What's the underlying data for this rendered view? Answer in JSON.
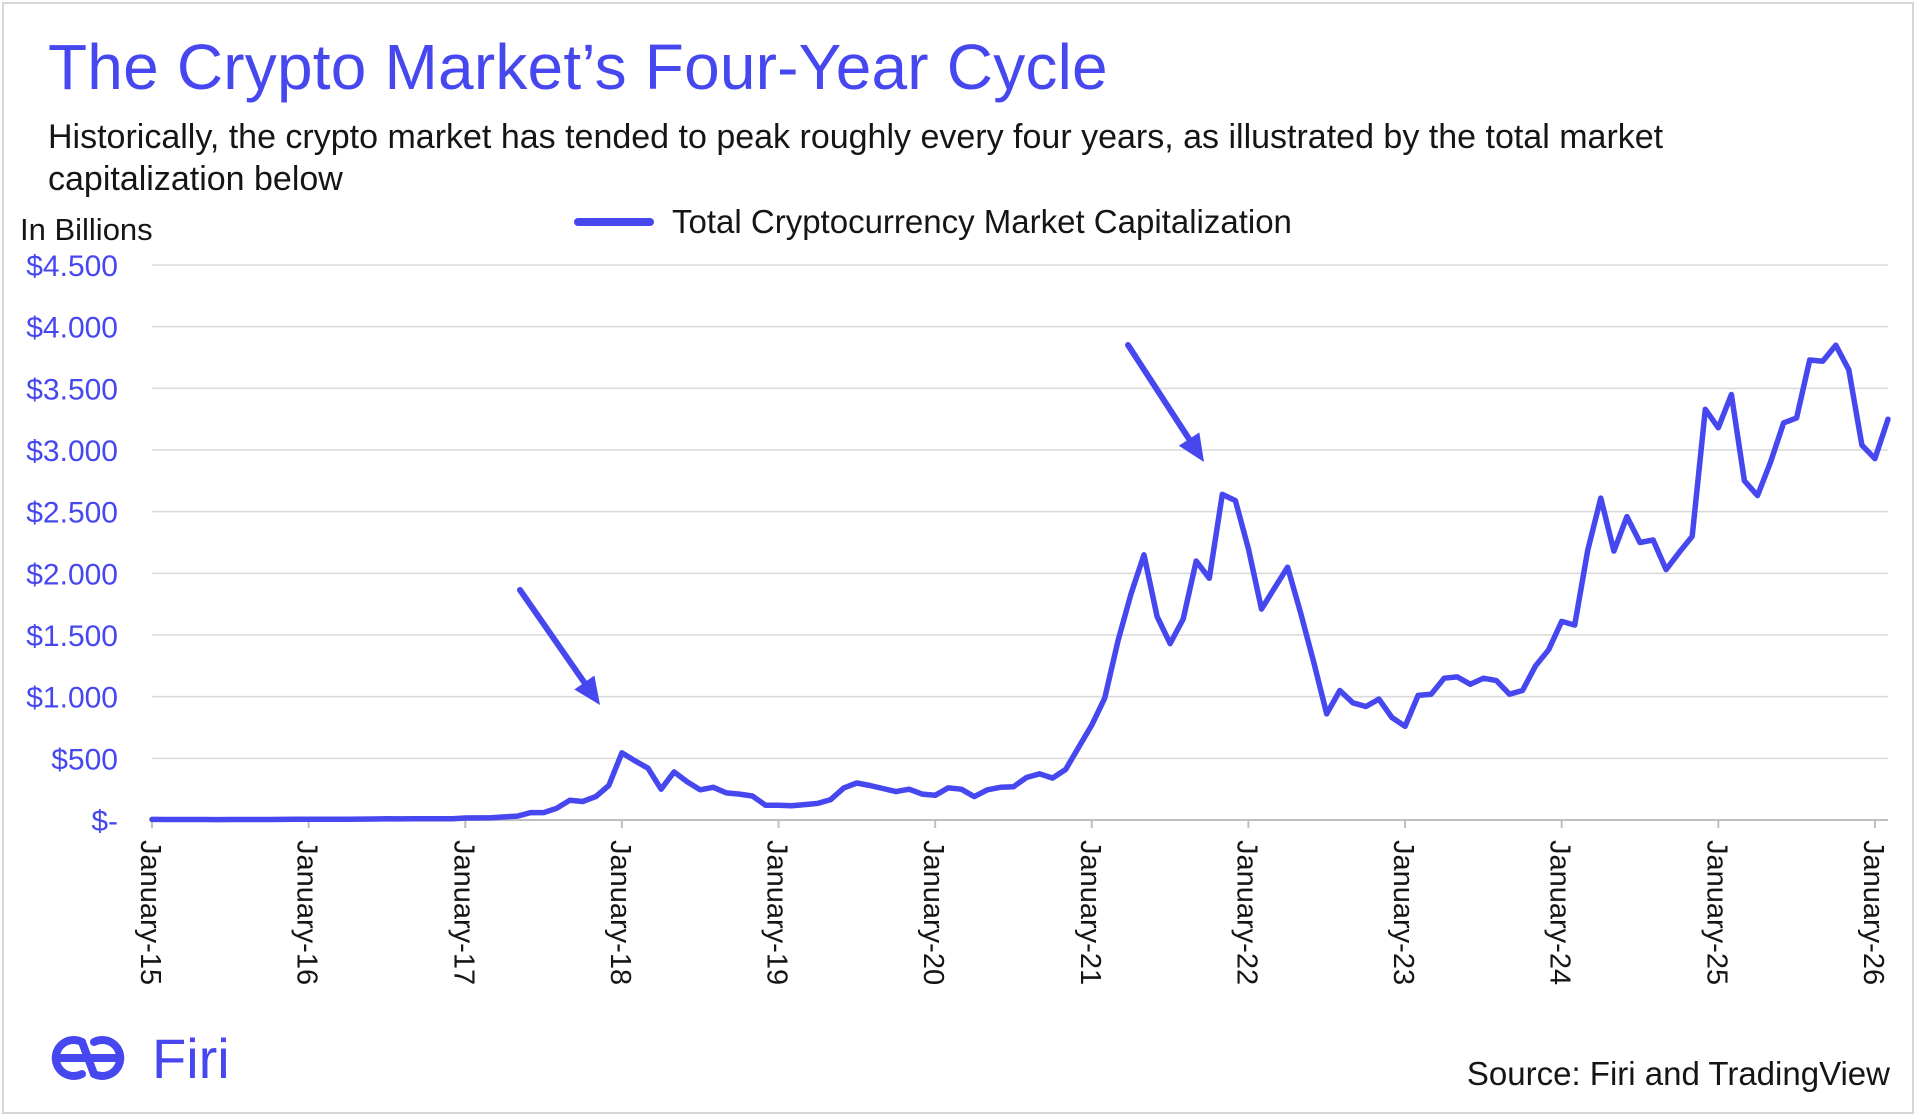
{
  "title": "The Crypto Market’s Four-Year Cycle",
  "subtitle": "Historically, the crypto market has tended to peak roughly every four years, as illustrated by the total market capitalization below",
  "brand": {
    "name": "Firi",
    "logo_icon": "firi-logo-icon",
    "color": "#4747f0"
  },
  "source": "Source: Firi and TradingView",
  "chart_data": {
    "type": "line",
    "title": "The Crypto Market’s Four-Year Cycle",
    "ylabel": "In Billions",
    "xlabel": "",
    "ylim": [
      0,
      4500
    ],
    "grid": true,
    "legend": "top-center",
    "y_ticks": [
      {
        "value": 0,
        "label": "$-"
      },
      {
        "value": 500,
        "label": "$500"
      },
      {
        "value": 1000,
        "label": "$1.000"
      },
      {
        "value": 1500,
        "label": "$1.500"
      },
      {
        "value": 2000,
        "label": "$2.000"
      },
      {
        "value": 2500,
        "label": "$2.500"
      },
      {
        "value": 3000,
        "label": "$3.000"
      },
      {
        "value": 3500,
        "label": "$3.500"
      },
      {
        "value": 4000,
        "label": "$4.000"
      },
      {
        "value": 4500,
        "label": "$4.500"
      }
    ],
    "x_ticks": [
      {
        "index": 0,
        "label": "January-15"
      },
      {
        "index": 12,
        "label": "January-16"
      },
      {
        "index": 24,
        "label": "January-17"
      },
      {
        "index": 36,
        "label": "January-18"
      },
      {
        "index": 48,
        "label": "January-19"
      },
      {
        "index": 60,
        "label": "January-20"
      },
      {
        "index": 72,
        "label": "January-21"
      },
      {
        "index": 84,
        "label": "January-22"
      },
      {
        "index": 96,
        "label": "January-23"
      },
      {
        "index": 108,
        "label": "January-24"
      },
      {
        "index": 120,
        "label": "January-25"
      },
      {
        "index": 132,
        "label": "January-26"
      }
    ],
    "series": [
      {
        "name": "Total Cryptocurrency Market Capitalization",
        "color": "#4747f0",
        "values": [
          5,
          4,
          4,
          4,
          4,
          3,
          4,
          4,
          4,
          4,
          5,
          6,
          6,
          6,
          6,
          6,
          7,
          8,
          10,
          9,
          10,
          10,
          10,
          10,
          16,
          17,
          19,
          25,
          32,
          60,
          60,
          95,
          160,
          150,
          190,
          280,
          545,
          480,
          420,
          250,
          390,
          310,
          245,
          265,
          220,
          210,
          195,
          120,
          120,
          115,
          125,
          135,
          165,
          260,
          300,
          280,
          255,
          230,
          250,
          210,
          200,
          260,
          250,
          190,
          245,
          265,
          270,
          345,
          375,
          340,
          410,
          590,
          770,
          990,
          1450,
          1830,
          2150,
          1650,
          1430,
          1630,
          2100,
          1960,
          2640,
          2590,
          2200,
          1710,
          1880,
          2050,
          1680,
          1280,
          860,
          1050,
          950,
          920,
          980,
          830,
          760,
          1010,
          1020,
          1150,
          1160,
          1100,
          1150,
          1130,
          1020,
          1050,
          1250,
          1380,
          1610,
          1580,
          2190,
          2610,
          2180,
          2460,
          2250,
          2270,
          2030,
          2170,
          2300,
          3330,
          3180,
          3450,
          2750,
          2630,
          2900,
          3220,
          3260,
          3730,
          3720,
          3850,
          3650,
          3040,
          2930,
          3250
        ]
      }
    ],
    "annotations": [
      {
        "type": "arrow",
        "points_to_index": 36,
        "meaning": "2017-2018 market peak"
      },
      {
        "type": "arrow",
        "points_to_index": 82,
        "meaning": "2021 market peak"
      }
    ]
  }
}
